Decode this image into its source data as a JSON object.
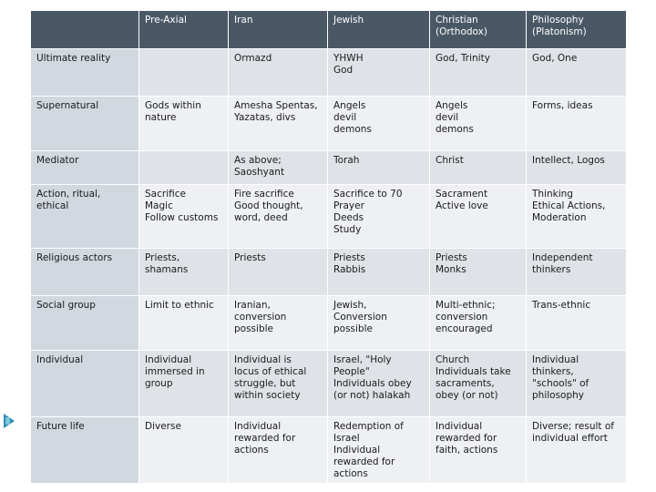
{
  "columns": [
    "",
    "Pre-Axial",
    "Iran",
    "Jewish",
    "Christian\n(Orthodox)",
    "Philosophy\n(Platonism)"
  ],
  "rows": [
    {
      "label": "Ultimate reality",
      "cells": [
        "",
        "Ormazd",
        "YHWH\nGod",
        "God, Trinity",
        "God, One"
      ]
    },
    {
      "label": "Supernatural",
      "cells": [
        "Gods within\nnature",
        "Amesha Spentas,\nYazatas, divs",
        "Angels\ndevil\ndemons",
        "Angels\ndevil\ndemons",
        "Forms, ideas"
      ]
    },
    {
      "label": "Mediator",
      "cells": [
        "",
        "As above;\nSaoshyant",
        "Torah",
        "Christ",
        "Intellect, Logos"
      ]
    },
    {
      "label": "Action, ritual,\nethical",
      "cells": [
        "Sacrifice\nMagic\nFollow customs",
        "Fire sacrifice\nGood thought,\nword, deed",
        "Sacrifice to 70\nPrayer\nDeeds\nStudy",
        "Sacrament\nActive love",
        "Thinking\nEthical Actions,\nModeration"
      ]
    },
    {
      "label": "Religious actors",
      "cells": [
        "Priests,\nshamans",
        "Priests",
        "Priests\nRabbis",
        "Priests\nMonks",
        "Independent\nthinkers"
      ]
    },
    {
      "label": "Social group",
      "cells": [
        "Limit to ethnic",
        "Iranian,\nconversion\npossible",
        "Jewish,\nConversion\npossible",
        "Multi-ethnic;\nconversion\nencouraged",
        "Trans-ethnic"
      ]
    },
    {
      "label": "Individual",
      "cells": [
        "Individual\nimmersed in\ngroup",
        "Individual is\nlocus of ethical\nstruggle, but\nwithin society",
        "Israel, \"Holy\nPeople\"\nIndividuals obey\n(or not) halakah",
        "Church\nIndividuals take\nsacraments,\nobey (or not)",
        "Individual\nthinkers,\n\"schools\" of\nphilosophy"
      ]
    },
    {
      "label": "Future life",
      "cells": [
        "Diverse",
        "Individual\nrewarded for\nactions",
        "Redemption of\nIsrael\nIndividual\nrewarded for\nactions",
        "Individual\nrewarded for\nfaith, actions",
        "Diverse; result of\nindividual effort"
      ]
    }
  ]
}
